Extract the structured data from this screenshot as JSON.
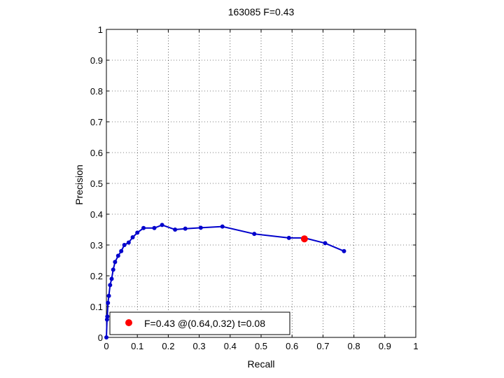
{
  "chart_data": {
    "type": "line",
    "title": "163085 F=0.43",
    "xlabel": "Recall",
    "ylabel": "Precision",
    "xlim": [
      0,
      1
    ],
    "ylim": [
      0,
      1
    ],
    "xticks": [
      "0",
      "0.1",
      "0.2",
      "0.3",
      "0.4",
      "0.5",
      "0.6",
      "0.7",
      "0.8",
      "0.9",
      "1"
    ],
    "yticks": [
      "0",
      "0.1",
      "0.2",
      "0.3",
      "0.4",
      "0.5",
      "0.6",
      "0.7",
      "0.8",
      "0.9",
      "1"
    ],
    "grid": true,
    "legend_position": "bottom-left",
    "series": [
      {
        "color": "#0000cc",
        "x": [
          0.0,
          0.002,
          0.003,
          0.005,
          0.008,
          0.012,
          0.017,
          0.022,
          0.028,
          0.038,
          0.048,
          0.058,
          0.072,
          0.085,
          0.1,
          0.12,
          0.155,
          0.18,
          0.222,
          0.255,
          0.305,
          0.375,
          0.478,
          0.59,
          0.64,
          0.707,
          0.768
        ],
        "y": [
          0.0,
          0.058,
          0.068,
          0.112,
          0.135,
          0.17,
          0.19,
          0.22,
          0.245,
          0.265,
          0.28,
          0.3,
          0.308,
          0.325,
          0.34,
          0.355,
          0.355,
          0.365,
          0.35,
          0.353,
          0.356,
          0.36,
          0.336,
          0.323,
          0.323,
          0.306,
          0.28
        ]
      }
    ],
    "highlight": {
      "x": 0.64,
      "y": 0.32,
      "color": "#ff0000",
      "label": "F=0.43 @(0.64,0.32) t=0.08"
    }
  }
}
